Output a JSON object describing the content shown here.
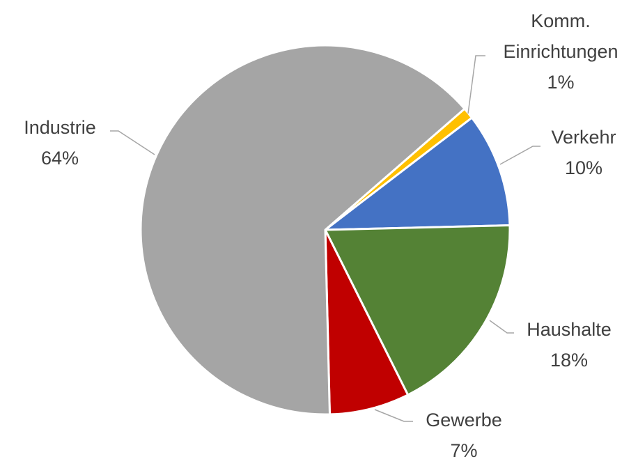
{
  "chart_data": {
    "type": "pie",
    "categories": [
      "Komm. Einrichtungen",
      "Verkehr",
      "Haushalte",
      "Gewerbe",
      "Industrie"
    ],
    "values": [
      1,
      10,
      18,
      7,
      64
    ],
    "value_labels": [
      "1%",
      "10%",
      "18%",
      "7%",
      "64%"
    ],
    "colors": [
      "#ffc000",
      "#4472c4",
      "#548235",
      "#c00000",
      "#a5a5a5"
    ]
  }
}
